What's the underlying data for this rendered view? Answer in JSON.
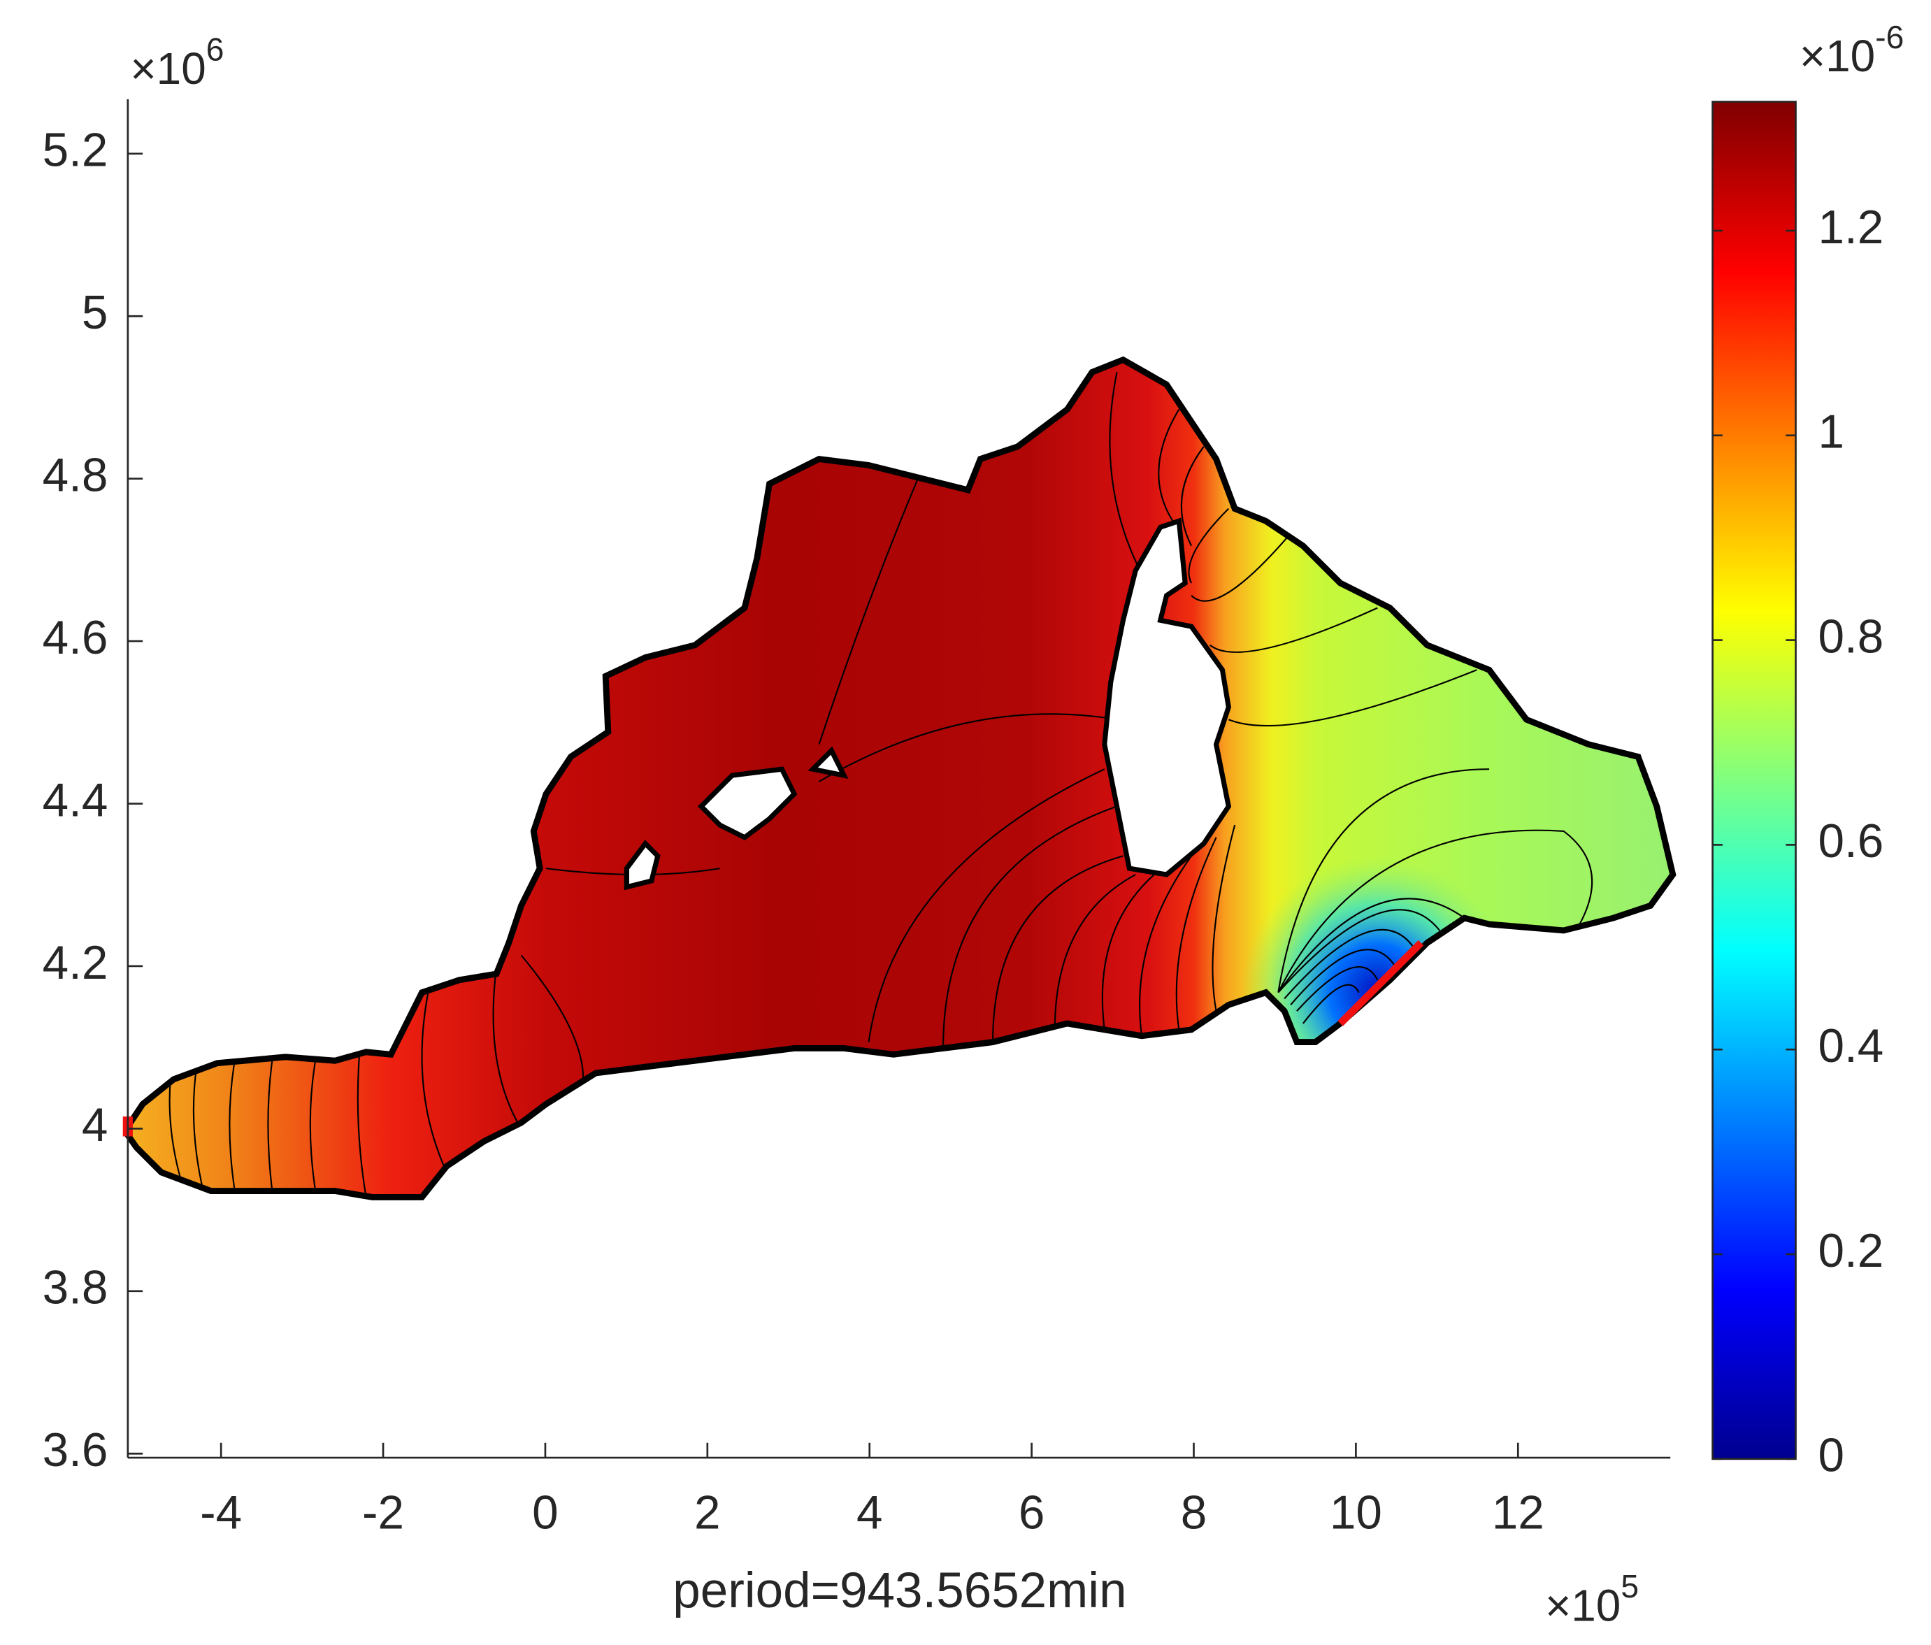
{
  "chart_data": {
    "type": "contour",
    "xlabel": "period=943.5652min",
    "x_multiplier": {
      "base": "×10",
      "exponent": "5"
    },
    "y_multiplier": {
      "base": "×10",
      "exponent": "6"
    },
    "xlim": [
      -5.15,
      13.88
    ],
    "xticks": [
      -4,
      -2,
      0,
      2,
      4,
      6,
      8,
      10,
      12
    ],
    "ylim": [
      3.595,
      5.267
    ],
    "yticks": [
      3.6,
      3.8,
      4,
      4.2,
      4.4,
      4.6,
      4.8,
      5,
      5.2
    ],
    "grid": false,
    "colorbar": {
      "colormap": "jet",
      "lim": [
        0,
        1.326
      ],
      "ticks": [
        0,
        0.2,
        0.4,
        0.6,
        0.8,
        1,
        1.2
      ],
      "multiplier": {
        "base": "×10",
        "exponent": "-6"
      }
    }
  }
}
